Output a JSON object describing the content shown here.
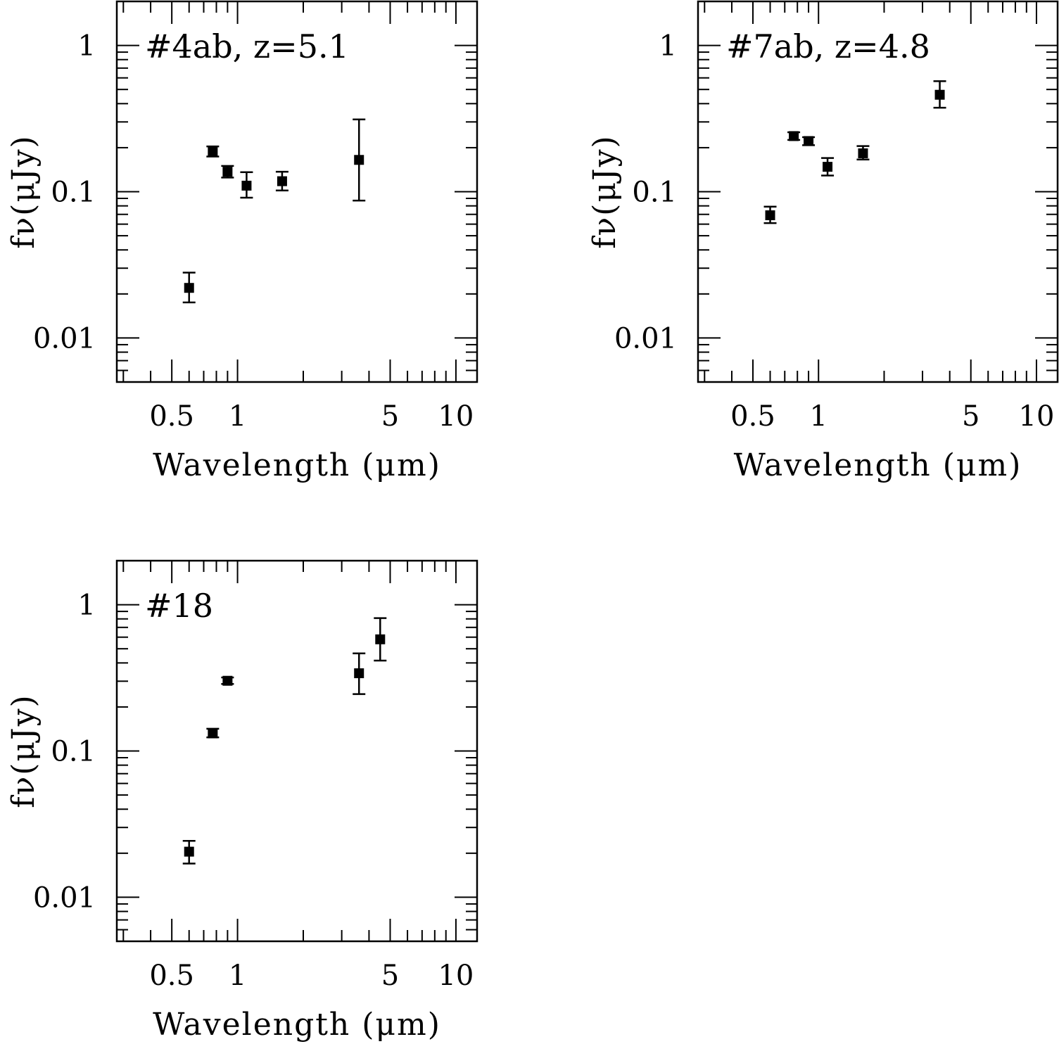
{
  "chart_data": [
    {
      "type": "scatter",
      "panel_label": "#4ab, z=5.1",
      "xlabel": "Wavelength (μm)",
      "ylabel": "fν(μJy)",
      "xscale": "log",
      "yscale": "log",
      "xlim": [
        0.28,
        12.5
      ],
      "ylim": [
        0.005,
        2.0
      ],
      "xticks": [
        {
          "value": 0.5,
          "label": "0.5"
        },
        {
          "value": 1,
          "label": "1"
        },
        {
          "value": 5,
          "label": "5"
        },
        {
          "value": 10,
          "label": "10"
        }
      ],
      "yticks": [
        {
          "value": 0.01,
          "label": "0.01"
        },
        {
          "value": 0.1,
          "label": "0.1"
        },
        {
          "value": 1,
          "label": "1"
        }
      ],
      "series": [
        {
          "x": [
            0.6,
            0.77,
            0.9,
            1.1,
            1.6,
            3.6
          ],
          "y": [
            0.022,
            0.19,
            0.137,
            0.11,
            0.118,
            0.165
          ],
          "yerr_low": [
            0.0175,
            0.174,
            0.125,
            0.091,
            0.102,
            0.087
          ],
          "yerr_high": [
            0.028,
            0.204,
            0.15,
            0.136,
            0.137,
            0.312
          ]
        }
      ]
    },
    {
      "type": "scatter",
      "panel_label": "#7ab, z=4.8",
      "xlabel": "Wavelength (μm)",
      "ylabel": "fν(μJy)",
      "xscale": "log",
      "yscale": "log",
      "xlim": [
        0.28,
        12.5
      ],
      "ylim": [
        0.005,
        2.0
      ],
      "xticks": [
        {
          "value": 0.5,
          "label": "0.5"
        },
        {
          "value": 1,
          "label": "1"
        },
        {
          "value": 5,
          "label": "5"
        },
        {
          "value": 10,
          "label": "10"
        }
      ],
      "yticks": [
        {
          "value": 0.01,
          "label": "0.01"
        },
        {
          "value": 0.1,
          "label": "0.1"
        },
        {
          "value": 1,
          "label": "1"
        }
      ],
      "series": [
        {
          "x": [
            0.6,
            0.77,
            0.9,
            1.1,
            1.6,
            3.6
          ],
          "y": [
            0.069,
            0.24,
            0.222,
            0.148,
            0.183,
            0.46
          ],
          "yerr_low": [
            0.061,
            0.226,
            0.208,
            0.129,
            0.166,
            0.375
          ],
          "yerr_high": [
            0.079,
            0.255,
            0.236,
            0.17,
            0.205,
            0.57
          ]
        }
      ]
    },
    {
      "type": "scatter",
      "panel_label": "#18",
      "xlabel": "Wavelength (μm)",
      "ylabel": "fν(μJy)",
      "xscale": "log",
      "yscale": "log",
      "xlim": [
        0.28,
        12.5
      ],
      "ylim": [
        0.005,
        2.0
      ],
      "xticks": [
        {
          "value": 0.5,
          "label": "0.5"
        },
        {
          "value": 1,
          "label": "1"
        },
        {
          "value": 5,
          "label": "5"
        },
        {
          "value": 10,
          "label": "10"
        }
      ],
      "yticks": [
        {
          "value": 0.01,
          "label": "0.01"
        },
        {
          "value": 0.1,
          "label": "0.1"
        },
        {
          "value": 1,
          "label": "1"
        }
      ],
      "series": [
        {
          "x": [
            0.6,
            0.77,
            0.9,
            3.6,
            4.5
          ],
          "y": [
            0.0205,
            0.132,
            0.302,
            0.34,
            0.58
          ],
          "yerr_low": [
            0.017,
            0.124,
            0.287,
            0.245,
            0.415
          ],
          "yerr_high": [
            0.0243,
            0.142,
            0.318,
            0.465,
            0.81
          ]
        }
      ]
    }
  ]
}
